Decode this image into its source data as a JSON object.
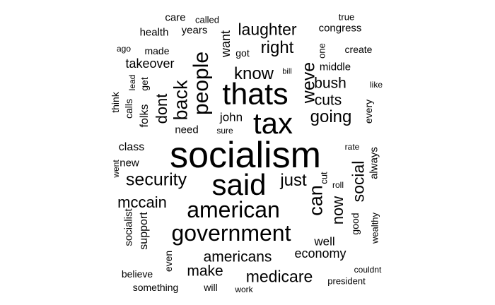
{
  "text_color": "#000000",
  "background_color": "#ffffff",
  "words": [
    {
      "text": "socialism",
      "weight": 100,
      "rotated": false
    },
    {
      "text": "thats",
      "weight": 70,
      "rotated": false
    },
    {
      "text": "said",
      "weight": 66,
      "rotated": false
    },
    {
      "text": "tax",
      "weight": 64,
      "rotated": false
    },
    {
      "text": "government",
      "weight": 52,
      "rotated": false
    },
    {
      "text": "american",
      "weight": 50,
      "rotated": false
    },
    {
      "text": "people",
      "weight": 48,
      "rotated": true
    },
    {
      "text": "back",
      "weight": 44,
      "rotated": true
    },
    {
      "text": "can",
      "weight": 42,
      "rotated": true
    },
    {
      "text": "weve",
      "weight": 40,
      "rotated": true
    },
    {
      "text": "security",
      "weight": 36,
      "rotated": false
    },
    {
      "text": "going",
      "weight": 34,
      "rotated": false
    },
    {
      "text": "know",
      "weight": 34,
      "rotated": false
    },
    {
      "text": "laughter",
      "weight": 34,
      "rotated": false
    },
    {
      "text": "just",
      "weight": 34,
      "rotated": false
    },
    {
      "text": "right",
      "weight": 32,
      "rotated": false
    },
    {
      "text": "social",
      "weight": 32,
      "rotated": true
    },
    {
      "text": "medicare",
      "weight": 32,
      "rotated": false
    },
    {
      "text": "now",
      "weight": 32,
      "rotated": true
    },
    {
      "text": "mccain",
      "weight": 30,
      "rotated": false
    },
    {
      "text": "dont",
      "weight": 30,
      "rotated": true
    },
    {
      "text": "americans",
      "weight": 28,
      "rotated": false
    },
    {
      "text": "bush",
      "weight": 26,
      "rotated": false
    },
    {
      "text": "cuts",
      "weight": 26,
      "rotated": false
    },
    {
      "text": "make",
      "weight": 26,
      "rotated": false
    },
    {
      "text": "want",
      "weight": 24,
      "rotated": true
    },
    {
      "text": "economy",
      "weight": 24,
      "rotated": false
    },
    {
      "text": "takeover",
      "weight": 22,
      "rotated": false
    },
    {
      "text": "john",
      "weight": 22,
      "rotated": false
    },
    {
      "text": "well",
      "weight": 22,
      "rotated": false
    },
    {
      "text": "folks",
      "weight": 20,
      "rotated": true
    },
    {
      "text": "class",
      "weight": 20,
      "rotated": false
    },
    {
      "text": "support",
      "weight": 20,
      "rotated": true
    },
    {
      "text": "always",
      "weight": 20,
      "rotated": true
    },
    {
      "text": "years",
      "weight": 18,
      "rotated": false
    },
    {
      "text": "care",
      "weight": 18,
      "rotated": false
    },
    {
      "text": "middle",
      "weight": 18,
      "rotated": false
    },
    {
      "text": "socialist",
      "weight": 18,
      "rotated": true
    },
    {
      "text": "need",
      "weight": 18,
      "rotated": false
    },
    {
      "text": "every",
      "weight": 18,
      "rotated": true
    },
    {
      "text": "good",
      "weight": 18,
      "rotated": true
    },
    {
      "text": "new",
      "weight": 18,
      "rotated": false
    },
    {
      "text": "get",
      "weight": 18,
      "rotated": true
    },
    {
      "text": "congress",
      "weight": 16,
      "rotated": false
    },
    {
      "text": "health",
      "weight": 16,
      "rotated": false
    },
    {
      "text": "got",
      "weight": 16,
      "rotated": false
    },
    {
      "text": "create",
      "weight": 16,
      "rotated": false
    },
    {
      "text": "made",
      "weight": 16,
      "rotated": false
    },
    {
      "text": "calls",
      "weight": 16,
      "rotated": true
    },
    {
      "text": "think",
      "weight": 16,
      "rotated": true
    },
    {
      "text": "cut",
      "weight": 16,
      "rotated": true
    },
    {
      "text": "wealthy",
      "weight": 16,
      "rotated": true
    },
    {
      "text": "even",
      "weight": 16,
      "rotated": true
    },
    {
      "text": "will",
      "weight": 16,
      "rotated": false
    },
    {
      "text": "president",
      "weight": 16,
      "rotated": false
    },
    {
      "text": "something",
      "weight": 16,
      "rotated": false
    },
    {
      "text": "believe",
      "weight": 16,
      "rotated": false
    },
    {
      "text": "one",
      "weight": 16,
      "rotated": true
    },
    {
      "text": "true",
      "weight": 14,
      "rotated": false
    },
    {
      "text": "called",
      "weight": 14,
      "rotated": false
    },
    {
      "text": "ago",
      "weight": 14,
      "rotated": false
    },
    {
      "text": "lead",
      "weight": 14,
      "rotated": true
    },
    {
      "text": "like",
      "weight": 14,
      "rotated": false
    },
    {
      "text": "sure",
      "weight": 14,
      "rotated": false
    },
    {
      "text": "rate",
      "weight": 14,
      "rotated": false
    },
    {
      "text": "went",
      "weight": 14,
      "rotated": true
    },
    {
      "text": "roll",
      "weight": 14,
      "rotated": false
    },
    {
      "text": "couldnt",
      "weight": 14,
      "rotated": false
    },
    {
      "text": "work",
      "weight": 14,
      "rotated": false
    },
    {
      "text": "bill",
      "weight": 12,
      "rotated": false
    }
  ]
}
